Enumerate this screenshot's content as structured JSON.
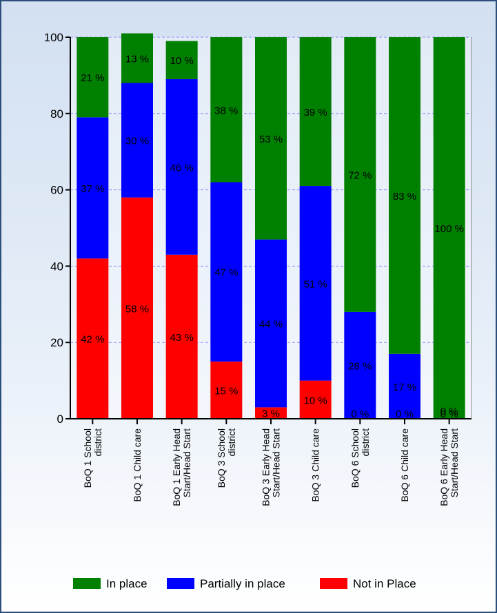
{
  "chart_data": {
    "type": "bar",
    "stacked": true,
    "categories": [
      [
        "BoQ 1 School",
        "district"
      ],
      [
        "BoQ 1 Child care"
      ],
      [
        "BoQ 1 Early Head",
        "Start/Head Start"
      ],
      [
        "BoQ 3 School",
        "district"
      ],
      [
        "BoQ 3 Early Head",
        "Start/Head Start"
      ],
      [
        "BoQ 3 Child care"
      ],
      [
        "BoQ 6 School",
        "district"
      ],
      [
        "BoQ 6 Child care"
      ],
      [
        "BoQ 6 Early Head",
        "Start/Head Start"
      ]
    ],
    "series": [
      {
        "name": "Not in Place",
        "color": "#ff0000",
        "values": [
          42,
          58,
          43,
          15,
          3,
          10,
          0,
          0,
          0
        ],
        "labels": [
          "42 %",
          "58 %",
          "43 %",
          "15 %",
          "3 %",
          "10 %",
          "0 %",
          "0 %",
          "0 %"
        ]
      },
      {
        "name": "Partially in place",
        "color": "#0000ff",
        "values": [
          37,
          30,
          46,
          47,
          44,
          51,
          28,
          17,
          0
        ],
        "labels": [
          "37 %",
          "30 %",
          "46 %",
          "47 %",
          "44 %",
          "51 %",
          "28 %",
          "17 %",
          "0 %"
        ]
      },
      {
        "name": "In place",
        "color": "#008000",
        "values": [
          21,
          13,
          10,
          38,
          53,
          39,
          72,
          83,
          100
        ],
        "labels": [
          "21 %",
          "13 %",
          "10 %",
          "38 %",
          "53 %",
          "39 %",
          "72 %",
          "83 %",
          "100 %"
        ]
      }
    ],
    "yticks": [
      0,
      20,
      40,
      60,
      80,
      100
    ],
    "ylim": [
      0,
      100
    ],
    "grid": true,
    "legend_position": "bottom",
    "legend_order": [
      "In place",
      "Partially in place",
      "Not in Place"
    ]
  }
}
